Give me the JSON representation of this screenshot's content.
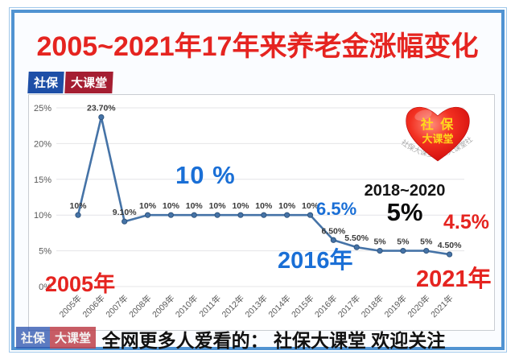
{
  "colors": {
    "frame_blue": "#5093d2",
    "title_red": "#e52420",
    "accent_blue": "#1a6fd6",
    "line_blue": "#4573a7",
    "badge_blue": "#1e4fa7",
    "badge_red": "#a51e32",
    "logo_heart_red": "#e00d0d",
    "logo_text_yellow": "#ffd91c"
  },
  "title": "2005~2021年17年来养老金涨幅变化",
  "top_badge": {
    "part1": "社保",
    "part2": "大课堂"
  },
  "logo": {
    "line1": "社 保",
    "line2": "大课堂",
    "watermark": "社保大课堂社保大课堂社保大课堂"
  },
  "annotations": {
    "peak_note": "10 %",
    "note_65": "6.5%",
    "range_label": "2018~2020",
    "range_value": "5%",
    "note_45": "4.5%",
    "year_start": "2005年",
    "year_2016": "2016年",
    "year_end": "2021年"
  },
  "footer": {
    "badge1": "社保",
    "badge2": "大课堂",
    "text": "全网更多人爱看的： 社保大课堂  欢迎关注"
  },
  "chart_data": {
    "type": "line",
    "title": "2005~2021年17年来养老金涨幅变化",
    "categories": [
      "2005年",
      "2006年",
      "2007年",
      "2008年",
      "2009年",
      "2010年",
      "2011年",
      "2012年",
      "2013年",
      "2014年",
      "2015年",
      "2016年",
      "2017年",
      "2018年",
      "2019年",
      "2020年",
      "2021年"
    ],
    "values": [
      10,
      23.7,
      9.1,
      10,
      10,
      10,
      10,
      10,
      10,
      10,
      10,
      6.5,
      5.5,
      5,
      5,
      5,
      4.5
    ],
    "point_labels": [
      "10%",
      "23.70%",
      "9.10%",
      "10%",
      "10%",
      "10%",
      "10%",
      "10%",
      "10%",
      "10%",
      "10%",
      "6.50%",
      "5.50%",
      "5%",
      "5%",
      "5%",
      "4.50%"
    ],
    "xlabel": "",
    "ylabel": "",
    "ylim": [
      0,
      25
    ],
    "ytick_labels": [
      "0%",
      "5%",
      "10%",
      "15%",
      "20%",
      "25%"
    ],
    "grid": true,
    "legend": false,
    "line_color": "#4573a7"
  }
}
